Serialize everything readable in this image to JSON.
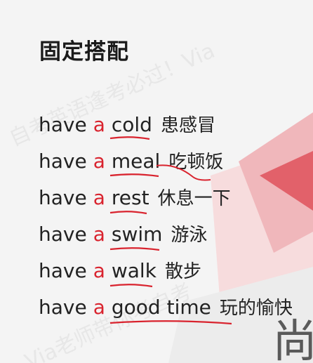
{
  "slide": {
    "title": "固定搭配",
    "phrases": [
      {
        "verb": "have",
        "article": "a",
        "noun": "cold",
        "meaning": "患感冒"
      },
      {
        "verb": "have",
        "article": "a",
        "noun": "meal",
        "meaning": "吃顿饭"
      },
      {
        "verb": "have",
        "article": "a",
        "noun": "rest",
        "meaning": "休息一下"
      },
      {
        "verb": "have",
        "article": "a",
        "noun": "swim",
        "meaning": "游泳"
      },
      {
        "verb": "have",
        "article": "a",
        "noun": "walk",
        "meaning": "散步"
      },
      {
        "verb": "have",
        "article": "a",
        "noun": "good time",
        "meaning": "玩的愉快"
      }
    ],
    "corner_glyph": "尚"
  },
  "colors": {
    "background": "#f4f4f4",
    "article_red": "#d9232e",
    "underline_red": "#d9232e",
    "shape_pink": "#f5c9cc",
    "shape_red": "#e2616a"
  }
}
